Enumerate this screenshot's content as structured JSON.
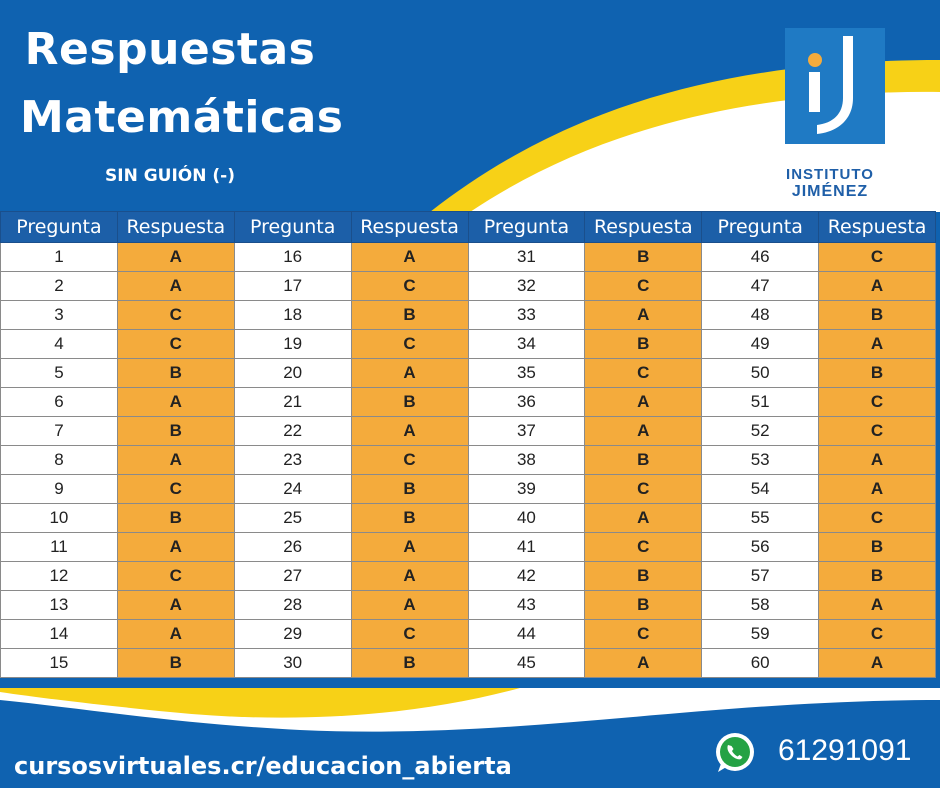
{
  "header": {
    "title_line1": "Respuestas",
    "title_line2": "Matemáticas",
    "subtitle": "SIN GUIÓN (-)"
  },
  "logo": {
    "line1": "INSTITUTO",
    "line2": "JIMÉNEZ",
    "colors": {
      "box": "#1f7ac4",
      "dot": "#f4ab3c",
      "text": "#1f5fa8"
    }
  },
  "table": {
    "headers": [
      "Pregunta",
      "Respuesta",
      "Pregunta",
      "Respuesta",
      "Pregunta",
      "Respuesta",
      "Pregunta",
      "Respuesta"
    ],
    "rows": [
      [
        "1",
        "A",
        "16",
        "A",
        "31",
        "B",
        "46",
        "C"
      ],
      [
        "2",
        "A",
        "17",
        "C",
        "32",
        "C",
        "47",
        "A"
      ],
      [
        "3",
        "C",
        "18",
        "B",
        "33",
        "A",
        "48",
        "B"
      ],
      [
        "4",
        "C",
        "19",
        "C",
        "34",
        "B",
        "49",
        "A"
      ],
      [
        "5",
        "B",
        "20",
        "A",
        "35",
        "C",
        "50",
        "B"
      ],
      [
        "6",
        "A",
        "21",
        "B",
        "36",
        "A",
        "51",
        "C"
      ],
      [
        "7",
        "B",
        "22",
        "A",
        "37",
        "A",
        "52",
        "C"
      ],
      [
        "8",
        "A",
        "23",
        "C",
        "38",
        "B",
        "53",
        "A"
      ],
      [
        "9",
        "C",
        "24",
        "B",
        "39",
        "C",
        "54",
        "A"
      ],
      [
        "10",
        "B",
        "25",
        "B",
        "40",
        "A",
        "55",
        "C"
      ],
      [
        "11",
        "A",
        "26",
        "A",
        "41",
        "C",
        "56",
        "B"
      ],
      [
        "12",
        "C",
        "27",
        "A",
        "42",
        "B",
        "57",
        "B"
      ],
      [
        "13",
        "A",
        "28",
        "A",
        "43",
        "B",
        "58",
        "A"
      ],
      [
        "14",
        "A",
        "29",
        "C",
        "44",
        "C",
        "59",
        "C"
      ],
      [
        "15",
        "B",
        "30",
        "B",
        "45",
        "A",
        "60",
        "A"
      ]
    ]
  },
  "footer": {
    "url": "cursosvirtuales.cr/educacion_abierta",
    "phone": "61291091",
    "icon": "whatsapp-icon"
  },
  "colors": {
    "background": "#0f62b0",
    "wave_yellow": "#f7d117",
    "answer_cell": "#f4ab3c",
    "header_cell": "#1c5fa8"
  }
}
